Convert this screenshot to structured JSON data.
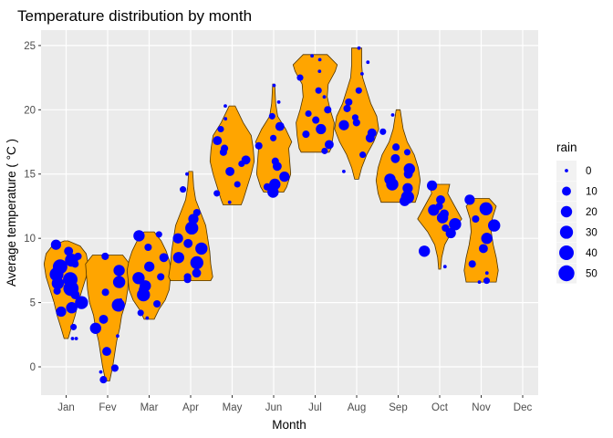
{
  "chart_data": {
    "type": "violin-jitter",
    "title": "Temperature distribution by month",
    "xlabel": "Month",
    "ylabel": "Average temperature ( °C )",
    "categories": [
      "Jan",
      "Fev",
      "Mar",
      "Apr",
      "May",
      "Jun",
      "Jul",
      "Aug",
      "Sep",
      "Oct",
      "Nov",
      "Dec"
    ],
    "ylim": [
      -2.2,
      26.2
    ],
    "y_ticks": [
      0,
      5,
      10,
      15,
      20,
      25
    ],
    "grid": true,
    "legend": {
      "title": "rain",
      "placement": "right",
      "entries": [
        {
          "label": "0",
          "value": 0
        },
        {
          "label": "10",
          "value": 10
        },
        {
          "label": "20",
          "value": 20
        },
        {
          "label": "30",
          "value": 30
        },
        {
          "label": "40",
          "value": 40
        },
        {
          "label": "50",
          "value": 50
        }
      ]
    },
    "colors": {
      "violin_fill": "#FFA500",
      "violin_stroke": "#4d3300",
      "points": "#0000FF",
      "panel": "#EBEBEB",
      "grid": "#FFFFFF"
    },
    "violins": [
      {
        "month": "Jan",
        "profile": [
          [
            2.2,
            0.02
          ],
          [
            3.0,
            0.05
          ],
          [
            4.0,
            0.09
          ],
          [
            5.0,
            0.12
          ],
          [
            6.0,
            0.16
          ],
          [
            7.0,
            0.2
          ],
          [
            8.0,
            0.22
          ],
          [
            8.8,
            0.2
          ],
          [
            9.4,
            0.14
          ],
          [
            9.8,
            0.02
          ]
        ]
      },
      {
        "month": "Fev",
        "profile": [
          [
            -1.1,
            0.02
          ],
          [
            0.0,
            0.05
          ],
          [
            1.0,
            0.07
          ],
          [
            2.0,
            0.09
          ],
          [
            3.0,
            0.12
          ],
          [
            4.0,
            0.14
          ],
          [
            5.0,
            0.18
          ],
          [
            6.0,
            0.2
          ],
          [
            7.0,
            0.21
          ],
          [
            8.0,
            0.22
          ],
          [
            8.7,
            0.15
          ]
        ]
      },
      {
        "month": "Mar",
        "profile": [
          [
            3.7,
            0.05
          ],
          [
            4.5,
            0.1
          ],
          [
            5.2,
            0.16
          ],
          [
            6.0,
            0.2
          ],
          [
            6.8,
            0.21
          ],
          [
            7.5,
            0.22
          ],
          [
            8.3,
            0.2
          ],
          [
            9.0,
            0.17
          ],
          [
            9.8,
            0.12
          ],
          [
            10.5,
            0.05
          ]
        ]
      },
      {
        "month": "Apr",
        "profile": [
          [
            6.7,
            0.2
          ],
          [
            7.0,
            0.22
          ],
          [
            7.5,
            0.21
          ],
          [
            8.0,
            0.2
          ],
          [
            9.0,
            0.19
          ],
          [
            10.0,
            0.17
          ],
          [
            11.0,
            0.15
          ],
          [
            12.0,
            0.1
          ],
          [
            13.0,
            0.05
          ],
          [
            14.0,
            0.03
          ],
          [
            15.2,
            0.02
          ]
        ]
      },
      {
        "month": "May",
        "profile": [
          [
            12.6,
            0.09
          ],
          [
            13.0,
            0.11
          ],
          [
            13.5,
            0.13
          ],
          [
            14.0,
            0.15
          ],
          [
            15.0,
            0.19
          ],
          [
            16.0,
            0.22
          ],
          [
            17.0,
            0.21
          ],
          [
            18.0,
            0.19
          ],
          [
            19.0,
            0.11
          ],
          [
            20.3,
            0.03
          ]
        ]
      },
      {
        "month": "Jun",
        "profile": [
          [
            13.6,
            0.1
          ],
          [
            14.0,
            0.13
          ],
          [
            15.0,
            0.17
          ],
          [
            16.0,
            0.16
          ],
          [
            17.0,
            0.15
          ],
          [
            17.5,
            0.18
          ],
          [
            18.5,
            0.12
          ],
          [
            19.5,
            0.04
          ],
          [
            20.5,
            0.02
          ],
          [
            22.0,
            0.01
          ]
        ]
      },
      {
        "month": "Jul",
        "profile": [
          [
            16.7,
            0.14
          ],
          [
            17.0,
            0.16
          ],
          [
            18.0,
            0.18
          ],
          [
            19.0,
            0.19
          ],
          [
            20.0,
            0.15
          ],
          [
            21.0,
            0.12
          ],
          [
            22.0,
            0.13
          ],
          [
            23.0,
            0.2
          ],
          [
            23.5,
            0.22
          ],
          [
            24.3,
            0.12
          ]
        ]
      },
      {
        "month": "Aug",
        "profile": [
          [
            14.6,
            0.02
          ],
          [
            15.5,
            0.05
          ],
          [
            16.5,
            0.1
          ],
          [
            17.5,
            0.17
          ],
          [
            18.5,
            0.22
          ],
          [
            19.5,
            0.2
          ],
          [
            20.5,
            0.14
          ],
          [
            21.5,
            0.1
          ],
          [
            22.5,
            0.06
          ],
          [
            23.5,
            0.05
          ],
          [
            24.8,
            0.05
          ]
        ]
      },
      {
        "month": "Sep",
        "profile": [
          [
            12.8,
            0.17
          ],
          [
            13.5,
            0.2
          ],
          [
            14.5,
            0.22
          ],
          [
            15.5,
            0.2
          ],
          [
            16.5,
            0.16
          ],
          [
            17.5,
            0.09
          ],
          [
            18.5,
            0.05
          ],
          [
            20.0,
            0.02
          ]
        ]
      },
      {
        "month": "Oct",
        "profile": [
          [
            7.6,
            0.01
          ],
          [
            8.5,
            0.02
          ],
          [
            9.5,
            0.05
          ],
          [
            10.5,
            0.12
          ],
          [
            11.5,
            0.22
          ],
          [
            12.5,
            0.15
          ],
          [
            13.5,
            0.08
          ],
          [
            14.2,
            0.1
          ]
        ]
      },
      {
        "month": "Nov",
        "profile": [
          [
            6.6,
            0.15
          ],
          [
            7.5,
            0.17
          ],
          [
            8.5,
            0.15
          ],
          [
            9.5,
            0.12
          ],
          [
            10.5,
            0.1
          ],
          [
            11.5,
            0.11
          ],
          [
            12.5,
            0.15
          ],
          [
            13.1,
            0.08
          ]
        ]
      }
    ],
    "points": [
      {
        "month": "Jan",
        "y": 6.1,
        "rain": 45
      },
      {
        "month": "Jan",
        "y": 7.8,
        "rain": 40
      },
      {
        "month": "Jan",
        "y": 6.8,
        "rain": 40
      },
      {
        "month": "Jan",
        "y": 5.0,
        "rain": 30
      },
      {
        "month": "Jan",
        "y": 4.6,
        "rain": 20
      },
      {
        "month": "Jan",
        "y": 8.3,
        "rain": 30
      },
      {
        "month": "Jan",
        "y": 9.5,
        "rain": 15
      },
      {
        "month": "Jan",
        "y": 8.6,
        "rain": 5
      },
      {
        "month": "Jan",
        "y": 2.2,
        "rain": 0
      },
      {
        "month": "Jan",
        "y": 2.2,
        "rain": 0
      },
      {
        "month": "Jan",
        "y": 3.1,
        "rain": 3
      },
      {
        "month": "Jan",
        "y": 4.3,
        "rain": 15
      },
      {
        "month": "Jan",
        "y": 5.6,
        "rain": 10
      },
      {
        "month": "Jan",
        "y": 7.2,
        "rain": 35
      },
      {
        "month": "Jan",
        "y": 9.0,
        "rain": 10
      },
      {
        "month": "Jan",
        "y": 6.5,
        "rain": 25
      },
      {
        "month": "Jan",
        "y": 5.9,
        "rain": 5
      },
      {
        "month": "Jan",
        "y": 8.0,
        "rain": 5
      },
      {
        "month": "Fev",
        "y": 6.6,
        "rain": 25
      },
      {
        "month": "Fev",
        "y": 4.8,
        "rain": 30
      },
      {
        "month": "Fev",
        "y": 3.0,
        "rain": 20
      },
      {
        "month": "Fev",
        "y": 1.2,
        "rain": 10
      },
      {
        "month": "Fev",
        "y": -0.1,
        "rain": 5
      },
      {
        "month": "Fev",
        "y": -1.0,
        "rain": 5
      },
      {
        "month": "Fev",
        "y": -0.4,
        "rain": 0
      },
      {
        "month": "Fev",
        "y": 3.7,
        "rain": 10
      },
      {
        "month": "Fev",
        "y": 5.2,
        "rain": 0
      },
      {
        "month": "Fev",
        "y": 7.5,
        "rain": 20
      },
      {
        "month": "Fev",
        "y": 8.6,
        "rain": 5
      },
      {
        "month": "Fev",
        "y": 5.8,
        "rain": 5
      },
      {
        "month": "Fev",
        "y": 2.4,
        "rain": 0
      },
      {
        "month": "Mar",
        "y": 10.2,
        "rain": 20
      },
      {
        "month": "Mar",
        "y": 6.9,
        "rain": 25
      },
      {
        "month": "Mar",
        "y": 5.6,
        "rain": 30
      },
      {
        "month": "Mar",
        "y": 6.3,
        "rain": 20
      },
      {
        "month": "Mar",
        "y": 7.8,
        "rain": 15
      },
      {
        "month": "Mar",
        "y": 8.5,
        "rain": 10
      },
      {
        "month": "Mar",
        "y": 9.3,
        "rain": 5
      },
      {
        "month": "Mar",
        "y": 4.9,
        "rain": 5
      },
      {
        "month": "Mar",
        "y": 4.2,
        "rain": 3
      },
      {
        "month": "Mar",
        "y": 3.8,
        "rain": 0
      },
      {
        "month": "Mar",
        "y": 7.0,
        "rain": 5
      },
      {
        "month": "Mar",
        "y": 10.3,
        "rain": 3
      },
      {
        "month": "Mar",
        "y": 6.0,
        "rain": 10
      },
      {
        "month": "Apr",
        "y": 10.8,
        "rain": 30
      },
      {
        "month": "Apr",
        "y": 9.2,
        "rain": 25
      },
      {
        "month": "Apr",
        "y": 8.1,
        "rain": 30
      },
      {
        "month": "Apr",
        "y": 8.5,
        "rain": 20
      },
      {
        "month": "Apr",
        "y": 11.5,
        "rain": 15
      },
      {
        "month": "Apr",
        "y": 10.0,
        "rain": 15
      },
      {
        "month": "Apr",
        "y": 7.3,
        "rain": 10
      },
      {
        "month": "Apr",
        "y": 7.0,
        "rain": 5
      },
      {
        "month": "Apr",
        "y": 12.0,
        "rain": 5
      },
      {
        "month": "Apr",
        "y": 13.8,
        "rain": 3
      },
      {
        "month": "Apr",
        "y": 15.0,
        "rain": 0
      },
      {
        "month": "Apr",
        "y": 6.8,
        "rain": 5
      },
      {
        "month": "Apr",
        "y": 9.6,
        "rain": 10
      },
      {
        "month": "May",
        "y": 16.1,
        "rain": 10
      },
      {
        "month": "May",
        "y": 15.2,
        "rain": 10
      },
      {
        "month": "May",
        "y": 17.6,
        "rain": 10
      },
      {
        "month": "May",
        "y": 17.0,
        "rain": 5
      },
      {
        "month": "May",
        "y": 18.5,
        "rain": 3
      },
      {
        "month": "May",
        "y": 14.2,
        "rain": 3
      },
      {
        "month": "May",
        "y": 13.5,
        "rain": 3
      },
      {
        "month": "May",
        "y": 19.3,
        "rain": 0
      },
      {
        "month": "May",
        "y": 20.3,
        "rain": 0
      },
      {
        "month": "May",
        "y": 12.8,
        "rain": 0
      },
      {
        "month": "May",
        "y": 16.7,
        "rain": 5
      },
      {
        "month": "May",
        "y": 15.8,
        "rain": 3
      },
      {
        "month": "Jun",
        "y": 13.6,
        "rain": 20
      },
      {
        "month": "Jun",
        "y": 14.2,
        "rain": 20
      },
      {
        "month": "Jun",
        "y": 14.8,
        "rain": 15
      },
      {
        "month": "Jun",
        "y": 15.6,
        "rain": 10
      },
      {
        "month": "Jun",
        "y": 18.7,
        "rain": 10
      },
      {
        "month": "Jun",
        "y": 17.2,
        "rain": 5
      },
      {
        "month": "Jun",
        "y": 16.0,
        "rain": 5
      },
      {
        "month": "Jun",
        "y": 19.5,
        "rain": 3
      },
      {
        "month": "Jun",
        "y": 21.9,
        "rain": 0
      },
      {
        "month": "Jun",
        "y": 20.6,
        "rain": 0
      },
      {
        "month": "Jun",
        "y": 14.0,
        "rain": 5
      },
      {
        "month": "Jun",
        "y": 17.8,
        "rain": 3
      },
      {
        "month": "Jul",
        "y": 17.3,
        "rain": 10
      },
      {
        "month": "Jul",
        "y": 18.1,
        "rain": 5
      },
      {
        "month": "Jul",
        "y": 19.2,
        "rain": 5
      },
      {
        "month": "Jul",
        "y": 20.0,
        "rain": 5
      },
      {
        "month": "Jul",
        "y": 21.5,
        "rain": 3
      },
      {
        "month": "Jul",
        "y": 22.5,
        "rain": 3
      },
      {
        "month": "Jul",
        "y": 23.0,
        "rain": 0
      },
      {
        "month": "Jul",
        "y": 23.9,
        "rain": 0
      },
      {
        "month": "Jul",
        "y": 24.2,
        "rain": 0
      },
      {
        "month": "Jul",
        "y": 16.8,
        "rain": 3
      },
      {
        "month": "Jul",
        "y": 18.5,
        "rain": 15
      },
      {
        "month": "Jul",
        "y": 19.7,
        "rain": 3
      },
      {
        "month": "Jul",
        "y": 21.0,
        "rain": 0
      },
      {
        "month": "Aug",
        "y": 18.2,
        "rain": 10
      },
      {
        "month": "Aug",
        "y": 19.0,
        "rain": 5
      },
      {
        "month": "Aug",
        "y": 20.1,
        "rain": 5
      },
      {
        "month": "Aug",
        "y": 21.5,
        "rain": 3
      },
      {
        "month": "Aug",
        "y": 22.8,
        "rain": 0
      },
      {
        "month": "Aug",
        "y": 23.7,
        "rain": 0
      },
      {
        "month": "Aug",
        "y": 24.8,
        "rain": 0
      },
      {
        "month": "Aug",
        "y": 16.5,
        "rain": 3
      },
      {
        "month": "Aug",
        "y": 15.2,
        "rain": 0
      },
      {
        "month": "Aug",
        "y": 17.8,
        "rain": 10
      },
      {
        "month": "Aug",
        "y": 18.8,
        "rain": 15
      },
      {
        "month": "Aug",
        "y": 20.6,
        "rain": 5
      },
      {
        "month": "Aug",
        "y": 19.4,
        "rain": 3
      },
      {
        "month": "Sep",
        "y": 13.2,
        "rain": 30
      },
      {
        "month": "Sep",
        "y": 14.2,
        "rain": 25
      },
      {
        "month": "Sep",
        "y": 15.4,
        "rain": 20
      },
      {
        "month": "Sep",
        "y": 14.6,
        "rain": 20
      },
      {
        "month": "Sep",
        "y": 13.9,
        "rain": 15
      },
      {
        "month": "Sep",
        "y": 16.2,
        "rain": 10
      },
      {
        "month": "Sep",
        "y": 17.1,
        "rain": 5
      },
      {
        "month": "Sep",
        "y": 18.3,
        "rain": 3
      },
      {
        "month": "Sep",
        "y": 19.6,
        "rain": 0
      },
      {
        "month": "Sep",
        "y": 12.9,
        "rain": 15
      },
      {
        "month": "Sep",
        "y": 15.0,
        "rain": 10
      },
      {
        "month": "Sep",
        "y": 16.7,
        "rain": 3
      },
      {
        "month": "Oct",
        "y": 11.1,
        "rain": 25
      },
      {
        "month": "Oct",
        "y": 11.6,
        "rain": 20
      },
      {
        "month": "Oct",
        "y": 10.4,
        "rain": 15
      },
      {
        "month": "Oct",
        "y": 12.2,
        "rain": 20
      },
      {
        "month": "Oct",
        "y": 9.0,
        "rain": 20
      },
      {
        "month": "Oct",
        "y": 14.1,
        "rain": 15
      },
      {
        "month": "Oct",
        "y": 13.0,
        "rain": 10
      },
      {
        "month": "Oct",
        "y": 11.9,
        "rain": 10
      },
      {
        "month": "Oct",
        "y": 10.8,
        "rain": 5
      },
      {
        "month": "Oct",
        "y": 7.8,
        "rain": 0
      },
      {
        "month": "Oct",
        "y": 12.5,
        "rain": 5
      },
      {
        "month": "Nov",
        "y": 12.3,
        "rain": 30
      },
      {
        "month": "Nov",
        "y": 11.0,
        "rain": 25
      },
      {
        "month": "Nov",
        "y": 10.0,
        "rain": 20
      },
      {
        "month": "Nov",
        "y": 13.0,
        "rain": 15
      },
      {
        "month": "Nov",
        "y": 9.2,
        "rain": 10
      },
      {
        "month": "Nov",
        "y": 8.0,
        "rain": 5
      },
      {
        "month": "Nov",
        "y": 6.7,
        "rain": 3
      },
      {
        "month": "Nov",
        "y": 6.6,
        "rain": 0
      },
      {
        "month": "Nov",
        "y": 11.5,
        "rain": 5
      },
      {
        "month": "Nov",
        "y": 7.3,
        "rain": 0
      }
    ]
  }
}
